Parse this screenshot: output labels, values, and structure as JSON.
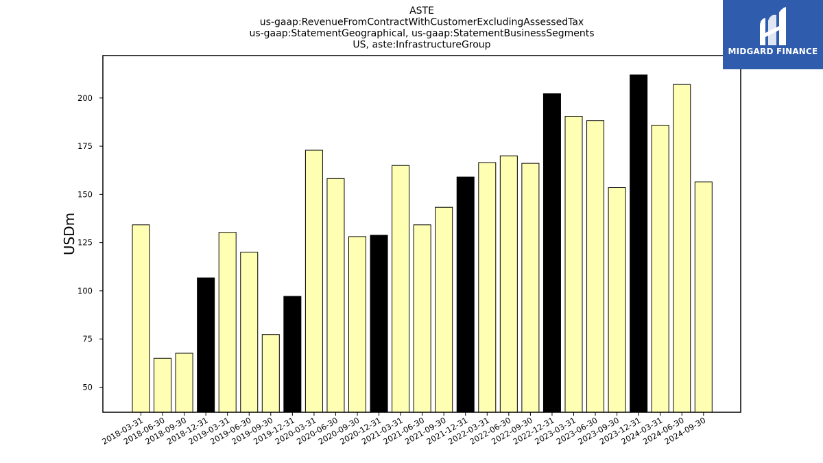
{
  "colors": {
    "normal": "#ffffb3",
    "q4": "#000000",
    "logo_bg": "#2f5cad"
  },
  "logo": {
    "text": "MIDGARD FINANCE",
    "icon": "midgard-logo-icon"
  },
  "chart_data": {
    "type": "bar",
    "title_lines": [
      "ASTE",
      "us-gaap:RevenueFromContractWithCustomerExcludingAssessedTax",
      "us-gaap:StatementGeographical, us-gaap:StatementBusinessSegments",
      "US, aste:InfrastructureGroup"
    ],
    "ylabel": "USDm",
    "xlabel": "",
    "ylim": [
      37,
      222
    ],
    "yticks": [
      50,
      75,
      100,
      125,
      150,
      175,
      200
    ],
    "grid": false,
    "categories": [
      "2018-03-31",
      "2018-06-30",
      "2018-09-30",
      "2018-12-31",
      "2019-03-31",
      "2019-06-30",
      "2019-09-30",
      "2019-12-31",
      "2020-03-31",
      "2020-06-30",
      "2020-09-30",
      "2020-12-31",
      "2021-03-31",
      "2021-06-30",
      "2021-09-30",
      "2021-12-31",
      "2022-03-31",
      "2022-06-30",
      "2022-09-30",
      "2022-12-31",
      "2023-03-31",
      "2023-06-30",
      "2023-09-30",
      "2023-12-31",
      "2024-03-31",
      "2024-06-30",
      "2024-09-30"
    ],
    "values": [
      134.2,
      65.0,
      67.6,
      106.7,
      130.3,
      120.0,
      77.3,
      97.1,
      172.9,
      158.2,
      128.1,
      128.8,
      165.0,
      134.2,
      143.3,
      159.0,
      166.5,
      170.0,
      166.1,
      202.2,
      190.5,
      188.3,
      153.5,
      212.0,
      185.9,
      207.0,
      156.5
    ],
    "highlight": [
      false,
      false,
      false,
      true,
      false,
      false,
      false,
      true,
      false,
      false,
      false,
      true,
      false,
      false,
      false,
      true,
      false,
      false,
      false,
      true,
      false,
      false,
      false,
      true,
      false,
      false,
      false
    ]
  }
}
